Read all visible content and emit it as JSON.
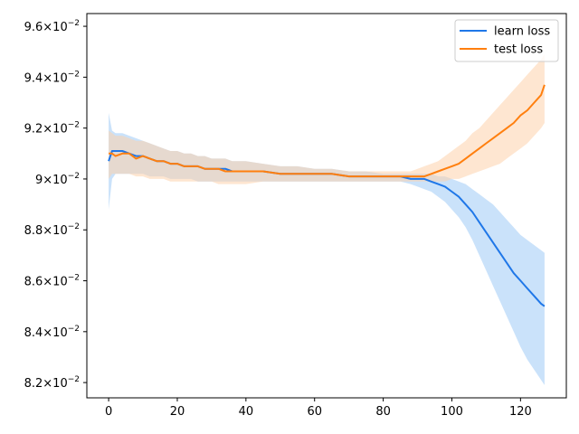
{
  "chart_data": {
    "type": "line",
    "title": "",
    "xlabel": "",
    "ylabel": "",
    "xlim": [
      -6.35,
      133.35
    ],
    "ylim": [
      0.0814,
      0.0965
    ],
    "grid": false,
    "legend_position": "top-right",
    "x_ticks": [
      0,
      20,
      40,
      60,
      80,
      100,
      120
    ],
    "x_tick_labels": [
      "0",
      "20",
      "40",
      "60",
      "80",
      "100",
      "120"
    ],
    "y_ticks": [
      0.082,
      0.084,
      0.086,
      0.088,
      0.09,
      0.092,
      0.094,
      0.096
    ],
    "y_tick_labels": [
      {
        "mantissa": "8.2",
        "base": "10",
        "exponent": "−2"
      },
      {
        "mantissa": "8.4",
        "base": "10",
        "exponent": "−2"
      },
      {
        "mantissa": "8.6",
        "base": "10",
        "exponent": "−2"
      },
      {
        "mantissa": "8.8",
        "base": "10",
        "exponent": "−2"
      },
      {
        "mantissa": "9",
        "base": "10",
        "exponent": "−2"
      },
      {
        "mantissa": "9.2",
        "base": "10",
        "exponent": "−2"
      },
      {
        "mantissa": "9.4",
        "base": "10",
        "exponent": "−2"
      },
      {
        "mantissa": "9.6",
        "base": "10",
        "exponent": "−2"
      }
    ],
    "x": [
      0,
      1,
      2,
      4,
      6,
      8,
      10,
      12,
      14,
      16,
      18,
      20,
      22,
      24,
      26,
      28,
      30,
      32,
      34,
      36,
      38,
      40,
      45,
      50,
      55,
      60,
      65,
      70,
      75,
      80,
      85,
      88,
      90,
      92,
      94,
      96,
      98,
      100,
      102,
      104,
      106,
      108,
      110,
      112,
      114,
      116,
      118,
      120,
      122,
      124,
      126,
      127
    ],
    "series": [
      {
        "name": "learn loss",
        "color": "#1f77e8",
        "band_color": "#9fcbf5",
        "values": [
          0.0907,
          0.0911,
          0.0911,
          0.0911,
          0.091,
          0.0909,
          0.0909,
          0.0908,
          0.0907,
          0.0907,
          0.0906,
          0.0906,
          0.0905,
          0.0905,
          0.0905,
          0.0904,
          0.0904,
          0.0904,
          0.0904,
          0.0903,
          0.0903,
          0.0903,
          0.0903,
          0.0902,
          0.0902,
          0.0902,
          0.0902,
          0.0901,
          0.0901,
          0.0901,
          0.0901,
          0.09,
          0.09,
          0.09,
          0.0899,
          0.0898,
          0.0897,
          0.0895,
          0.0893,
          0.089,
          0.0887,
          0.0883,
          0.0879,
          0.0875,
          0.0871,
          0.0867,
          0.0863,
          0.086,
          0.0857,
          0.0854,
          0.0851,
          0.085
        ],
        "band_low": [
          0.0888,
          0.09,
          0.0902,
          0.0902,
          0.0902,
          0.0902,
          0.0902,
          0.0901,
          0.0901,
          0.0901,
          0.09,
          0.09,
          0.09,
          0.09,
          0.0899,
          0.0899,
          0.0899,
          0.0899,
          0.0899,
          0.0899,
          0.0899,
          0.0899,
          0.0899,
          0.0899,
          0.0899,
          0.0899,
          0.0899,
          0.0899,
          0.0899,
          0.0899,
          0.0899,
          0.0898,
          0.0897,
          0.0896,
          0.0895,
          0.0893,
          0.0891,
          0.0888,
          0.0885,
          0.0881,
          0.0876,
          0.087,
          0.0864,
          0.0858,
          0.0852,
          0.0846,
          0.084,
          0.0834,
          0.0829,
          0.0825,
          0.0821,
          0.0819
        ],
        "band_high": [
          0.0926,
          0.0919,
          0.0918,
          0.0918,
          0.0917,
          0.0916,
          0.0915,
          0.0914,
          0.0913,
          0.0912,
          0.0911,
          0.0911,
          0.091,
          0.091,
          0.0909,
          0.0909,
          0.0908,
          0.0908,
          0.0908,
          0.0907,
          0.0907,
          0.0907,
          0.0906,
          0.0905,
          0.0905,
          0.0904,
          0.0904,
          0.0903,
          0.0903,
          0.0902,
          0.0902,
          0.0902,
          0.0902,
          0.0902,
          0.0902,
          0.0901,
          0.0901,
          0.09,
          0.0899,
          0.0898,
          0.0896,
          0.0894,
          0.0892,
          0.089,
          0.0887,
          0.0884,
          0.0881,
          0.0878,
          0.0876,
          0.0874,
          0.0872,
          0.0871
        ]
      },
      {
        "name": "test loss",
        "color": "#ff7f0e",
        "band_color": "#fdd2ab",
        "values": [
          0.091,
          0.091,
          0.0909,
          0.091,
          0.091,
          0.0908,
          0.0909,
          0.0908,
          0.0907,
          0.0907,
          0.0906,
          0.0906,
          0.0905,
          0.0905,
          0.0905,
          0.0904,
          0.0904,
          0.0904,
          0.0903,
          0.0903,
          0.0903,
          0.0903,
          0.0903,
          0.0902,
          0.0902,
          0.0902,
          0.0902,
          0.0901,
          0.0901,
          0.0901,
          0.0901,
          0.0901,
          0.0901,
          0.0901,
          0.0902,
          0.0903,
          0.0904,
          0.0905,
          0.0906,
          0.0908,
          0.091,
          0.0912,
          0.0914,
          0.0916,
          0.0918,
          0.092,
          0.0922,
          0.0925,
          0.0927,
          0.093,
          0.0933,
          0.0937
        ],
        "band_low": [
          0.09,
          0.0902,
          0.0902,
          0.0902,
          0.0902,
          0.0901,
          0.0901,
          0.09,
          0.09,
          0.09,
          0.0899,
          0.0899,
          0.0899,
          0.0899,
          0.0899,
          0.0899,
          0.0899,
          0.0898,
          0.0898,
          0.0898,
          0.0898,
          0.0898,
          0.0899,
          0.0899,
          0.0899,
          0.0899,
          0.0899,
          0.0899,
          0.0899,
          0.0899,
          0.0899,
          0.0899,
          0.0899,
          0.0899,
          0.0899,
          0.0899,
          0.0899,
          0.09,
          0.09,
          0.0901,
          0.0902,
          0.0903,
          0.0904,
          0.0905,
          0.0906,
          0.0908,
          0.091,
          0.0912,
          0.0914,
          0.0917,
          0.092,
          0.0922
        ],
        "band_high": [
          0.0919,
          0.0918,
          0.0917,
          0.0917,
          0.0916,
          0.0915,
          0.0915,
          0.0914,
          0.0913,
          0.0912,
          0.0911,
          0.0911,
          0.091,
          0.091,
          0.0909,
          0.0909,
          0.0908,
          0.0908,
          0.0908,
          0.0907,
          0.0907,
          0.0907,
          0.0906,
          0.0905,
          0.0905,
          0.0904,
          0.0904,
          0.0903,
          0.0903,
          0.0903,
          0.0903,
          0.0903,
          0.0904,
          0.0905,
          0.0906,
          0.0907,
          0.0909,
          0.0911,
          0.0913,
          0.0915,
          0.0918,
          0.092,
          0.0923,
          0.0926,
          0.0929,
          0.0932,
          0.0935,
          0.0938,
          0.0941,
          0.0944,
          0.0947,
          0.0949
        ]
      }
    ]
  }
}
